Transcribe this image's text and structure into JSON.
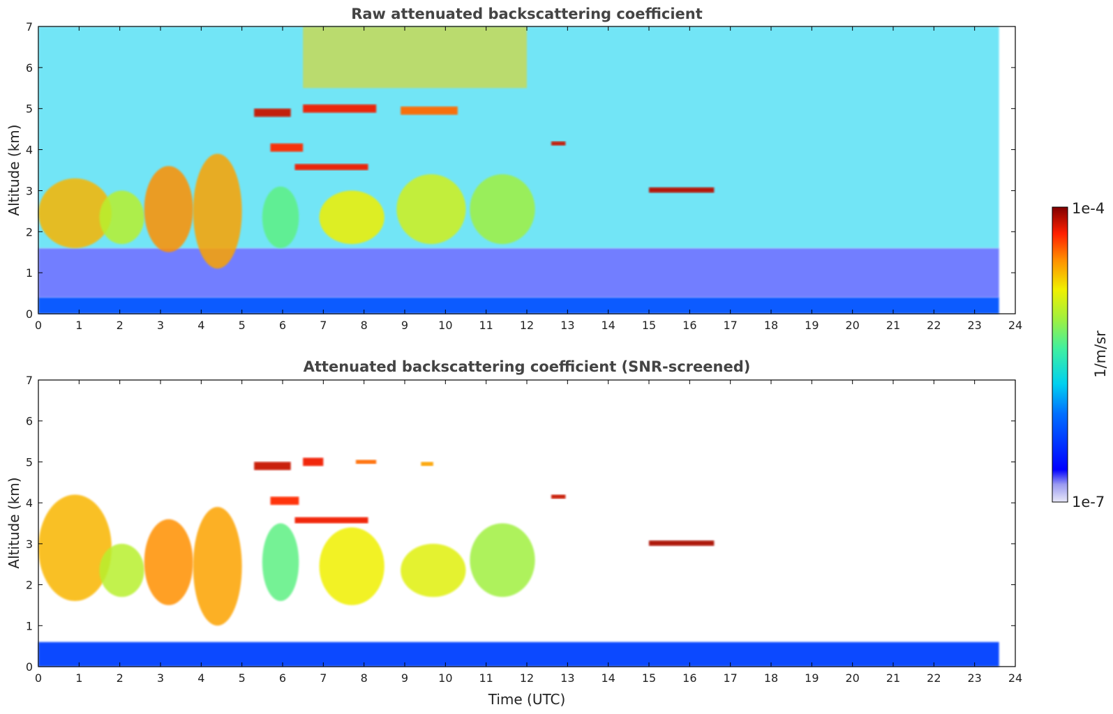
{
  "chart_data": [
    {
      "type": "heatmap",
      "title": "Raw attenuated backscattering coefficient",
      "xlabel": "",
      "ylabel": "Altitude (km)",
      "xlim": [
        0,
        24
      ],
      "ylim": [
        0,
        7
      ],
      "xticks": [
        "0",
        "1",
        "2",
        "3",
        "4",
        "5",
        "6",
        "7",
        "8",
        "9",
        "10",
        "11",
        "12",
        "13",
        "14",
        "15",
        "16",
        "17",
        "18",
        "19",
        "20",
        "21",
        "22",
        "23",
        "24"
      ],
      "yticks": [
        "0",
        "1",
        "2",
        "3",
        "4",
        "5",
        "6",
        "7"
      ],
      "data_end_time": 23.6,
      "grid": false,
      "features": [
        {
          "name": "surface layer",
          "t_start": 0,
          "t_end": 23.6,
          "alt_bottom": 0,
          "alt_top": 0.4,
          "level": 0.25
        },
        {
          "name": "noise floor",
          "t_start": 0,
          "t_end": 23.6,
          "alt_bottom": 0.4,
          "alt_top": 1.6,
          "level": 0.15
        },
        {
          "name": "clear-sky upper signal",
          "t_start": 0,
          "t_end": 23.6,
          "alt_bottom": 1.6,
          "alt_top": 7.0,
          "level": 0.4
        },
        {
          "name": "enhanced noise aloft",
          "t_start": 6.5,
          "t_end": 12.0,
          "alt_bottom": 5.5,
          "alt_top": 7.0,
          "level": 0.75
        },
        {
          "name": "virga",
          "t_start": 0.0,
          "t_end": 1.8,
          "alt_bottom": 1.6,
          "alt_top": 3.3,
          "level": 0.78
        },
        {
          "name": "virga",
          "t_start": 1.5,
          "t_end": 2.6,
          "alt_bottom": 1.7,
          "alt_top": 3.0,
          "level": 0.65
        },
        {
          "name": "virga",
          "t_start": 2.6,
          "t_end": 3.8,
          "alt_bottom": 1.5,
          "alt_top": 3.6,
          "level": 0.82
        },
        {
          "name": "virga",
          "t_start": 3.8,
          "t_end": 5.0,
          "alt_bottom": 1.1,
          "alt_top": 3.9,
          "level": 0.8
        },
        {
          "name": "virga",
          "t_start": 5.5,
          "t_end": 6.4,
          "alt_bottom": 1.6,
          "alt_top": 3.1,
          "level": 0.55
        },
        {
          "name": "virga",
          "t_start": 6.9,
          "t_end": 8.5,
          "alt_bottom": 1.7,
          "alt_top": 3.0,
          "level": 0.72
        },
        {
          "name": "virga",
          "t_start": 8.8,
          "t_end": 10.5,
          "alt_bottom": 1.7,
          "alt_top": 3.4,
          "level": 0.68
        },
        {
          "name": "virga",
          "t_start": 10.6,
          "t_end": 12.2,
          "alt_bottom": 1.7,
          "alt_top": 3.4,
          "level": 0.62
        },
        {
          "name": "mid-level cloud",
          "t_start": 5.3,
          "t_end": 6.2,
          "alt_bottom": 4.8,
          "alt_top": 5.0,
          "level": 0.95
        },
        {
          "name": "mid-level cloud",
          "t_start": 6.5,
          "t_end": 8.3,
          "alt_bottom": 4.9,
          "alt_top": 5.1,
          "level": 0.92
        },
        {
          "name": "mid-level cloud",
          "t_start": 8.9,
          "t_end": 10.3,
          "alt_bottom": 4.85,
          "alt_top": 5.05,
          "level": 0.85
        },
        {
          "name": "mid-level cloud",
          "t_start": 5.7,
          "t_end": 6.5,
          "alt_bottom": 3.95,
          "alt_top": 4.15,
          "level": 0.9
        },
        {
          "name": "mid-level cloud",
          "t_start": 6.3,
          "t_end": 8.1,
          "alt_bottom": 3.5,
          "alt_top": 3.65,
          "level": 0.92
        },
        {
          "name": "mid-level cloud",
          "t_start": 12.6,
          "t_end": 12.95,
          "alt_bottom": 4.1,
          "alt_top": 4.2,
          "level": 0.95
        },
        {
          "name": "mid-level cloud",
          "t_start": 15.0,
          "t_end": 16.6,
          "alt_bottom": 2.95,
          "alt_top": 3.08,
          "level": 0.96
        }
      ]
    },
    {
      "type": "heatmap",
      "title": "Attenuated backscattering coefficient (SNR-screened)",
      "xlabel": "Time (UTC)",
      "ylabel": "Altitude (km)",
      "xlim": [
        0,
        24
      ],
      "ylim": [
        0,
        7
      ],
      "xticks": [
        "0",
        "1",
        "2",
        "3",
        "4",
        "5",
        "6",
        "7",
        "8",
        "9",
        "10",
        "11",
        "12",
        "13",
        "14",
        "15",
        "16",
        "17",
        "18",
        "19",
        "20",
        "21",
        "22",
        "23",
        "24"
      ],
      "yticks": [
        "0",
        "1",
        "2",
        "3",
        "4",
        "5",
        "6",
        "7"
      ],
      "data_end_time": 23.6,
      "grid": false,
      "features": [
        {
          "name": "surface layer",
          "t_start": 0,
          "t_end": 23.6,
          "alt_bottom": 0,
          "alt_top": 0.6,
          "level": 0.22
        },
        {
          "name": "virga",
          "t_start": 0.0,
          "t_end": 1.8,
          "alt_bottom": 1.6,
          "alt_top": 4.2,
          "level": 0.78
        },
        {
          "name": "virga",
          "t_start": 1.5,
          "t_end": 2.6,
          "alt_bottom": 1.7,
          "alt_top": 3.0,
          "level": 0.65
        },
        {
          "name": "virga",
          "t_start": 2.6,
          "t_end": 3.8,
          "alt_bottom": 1.5,
          "alt_top": 3.6,
          "level": 0.82
        },
        {
          "name": "virga",
          "t_start": 3.8,
          "t_end": 5.0,
          "alt_bottom": 1.0,
          "alt_top": 3.9,
          "level": 0.8
        },
        {
          "name": "virga",
          "t_start": 5.5,
          "t_end": 6.4,
          "alt_bottom": 1.6,
          "alt_top": 3.5,
          "level": 0.55
        },
        {
          "name": "virga",
          "t_start": 6.9,
          "t_end": 8.5,
          "alt_bottom": 1.5,
          "alt_top": 3.4,
          "level": 0.72
        },
        {
          "name": "virga",
          "t_start": 8.9,
          "t_end": 10.5,
          "alt_bottom": 1.7,
          "alt_top": 3.0,
          "level": 0.7
        },
        {
          "name": "virga",
          "t_start": 10.6,
          "t_end": 12.2,
          "alt_bottom": 1.7,
          "alt_top": 3.5,
          "level": 0.62
        },
        {
          "name": "mid-level cloud",
          "t_start": 5.3,
          "t_end": 6.2,
          "alt_bottom": 4.8,
          "alt_top": 5.0,
          "level": 0.95
        },
        {
          "name": "mid-level cloud",
          "t_start": 6.5,
          "t_end": 7.0,
          "alt_bottom": 4.9,
          "alt_top": 5.1,
          "level": 0.92
        },
        {
          "name": "mid-level cloud",
          "t_start": 7.8,
          "t_end": 8.3,
          "alt_bottom": 4.95,
          "alt_top": 5.05,
          "level": 0.85
        },
        {
          "name": "mid-level cloud",
          "t_start": 9.4,
          "t_end": 9.7,
          "alt_bottom": 4.9,
          "alt_top": 5.0,
          "level": 0.8
        },
        {
          "name": "mid-level cloud",
          "t_start": 5.7,
          "t_end": 6.4,
          "alt_bottom": 3.95,
          "alt_top": 4.15,
          "level": 0.9
        },
        {
          "name": "mid-level cloud",
          "t_start": 6.3,
          "t_end": 8.1,
          "alt_bottom": 3.5,
          "alt_top": 3.65,
          "level": 0.92
        },
        {
          "name": "mid-level cloud",
          "t_start": 12.6,
          "t_end": 12.95,
          "alt_bottom": 4.1,
          "alt_top": 4.2,
          "level": 0.95
        },
        {
          "name": "mid-level cloud",
          "t_start": 15.0,
          "t_end": 16.6,
          "alt_bottom": 2.95,
          "alt_top": 3.08,
          "level": 0.97
        }
      ]
    }
  ],
  "colorbar": {
    "min_label": "1e-7",
    "max_label": "1e-4",
    "unit_label": "1/m/sr",
    "scale": "log",
    "colormap": "jet"
  }
}
